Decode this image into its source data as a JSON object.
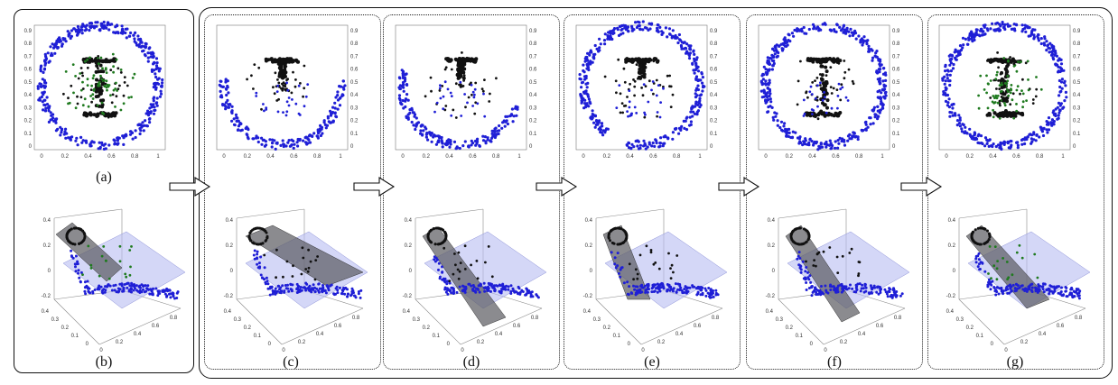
{
  "panels": [
    {
      "label": "(a)",
      "view": "full-green"
    },
    {
      "label": "(c)",
      "view": "bottom"
    },
    {
      "label": "(d)",
      "view": "bottom-left"
    },
    {
      "label": "(e)",
      "view": "right"
    },
    {
      "label": "(f)",
      "view": "full"
    },
    {
      "label": "(g)",
      "view": "full-green"
    }
  ],
  "label_b": "(b)",
  "scatter_axes": {
    "x_ticks": [
      "0",
      "0.2",
      "0.4",
      "0.6",
      "0.8",
      "1"
    ],
    "y_ticks": [
      "0",
      "0.1",
      "0.2",
      "0.3",
      "0.4",
      "0.5",
      "0.6",
      "0.7",
      "0.8",
      "0.9"
    ]
  },
  "plot3d_axes": {
    "z_ticks": [
      "0.4",
      "0.2",
      "0",
      "-0.2"
    ],
    "left_ticks": [
      "0.4",
      "0.3",
      "0.2",
      "0.1",
      "0"
    ],
    "right_ticks": [
      "0",
      "0.2",
      "0.4",
      "0.6",
      "0.8"
    ]
  },
  "colors": {
    "ring": "#1f1fd6",
    "letter": "#111111",
    "inner": "#1f7a1f",
    "plane_light": "#b8bcf2",
    "plane_dark": "#5a5a60"
  },
  "arrows": [
    "arrow-a-to-c",
    "arrow-c-to-d",
    "arrow-d-to-e",
    "arrow-e-to-f",
    "arrow-f-to-g"
  ]
}
